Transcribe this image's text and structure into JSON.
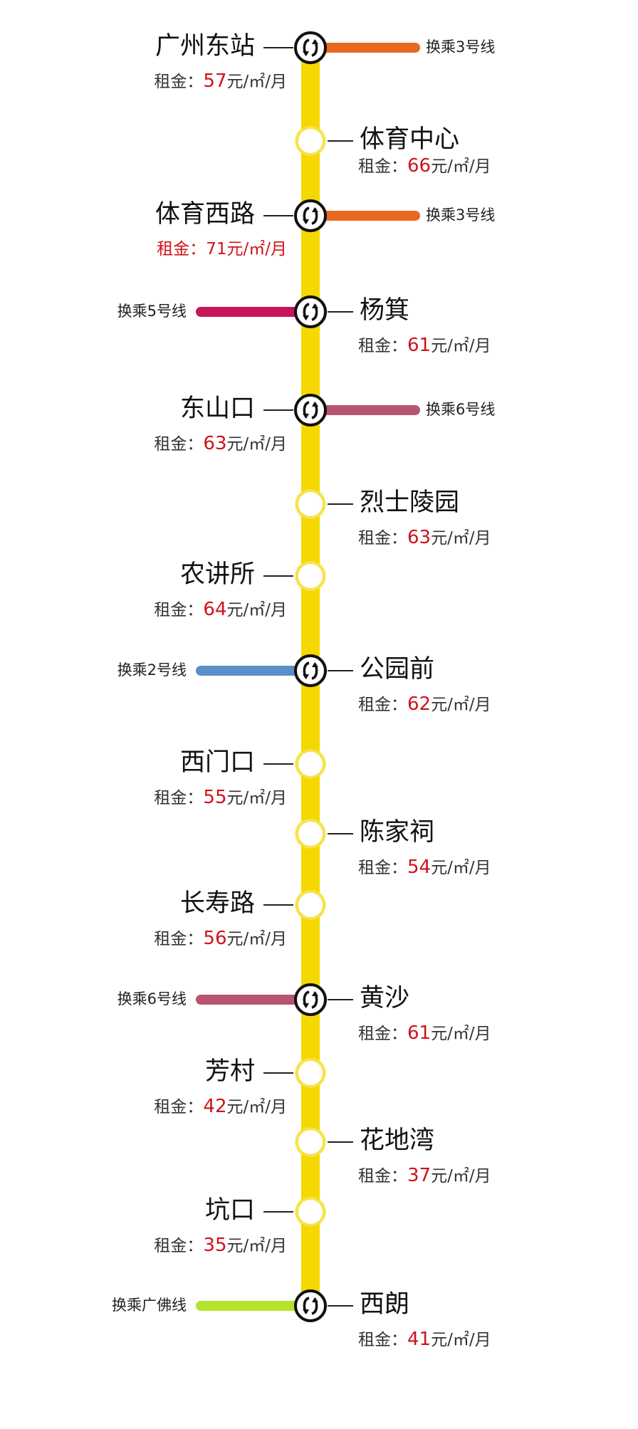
{
  "line_color": "#f5d800",
  "rent_prefix": "租金：",
  "rent_unit": "元/㎡/月",
  "stations": [
    {
      "name": "广州东站",
      "side": "left",
      "rent": "57",
      "transfer": {
        "label": "换乘3号线",
        "color": "#e8691e"
      }
    },
    {
      "name": "体育中心",
      "side": "right",
      "rent": "66"
    },
    {
      "name": "体育西路",
      "side": "left",
      "rent": "71",
      "highlight": true,
      "transfer": {
        "label": "换乘3号线",
        "color": "#e8691e"
      }
    },
    {
      "name": "杨箕",
      "side": "right",
      "rent": "61",
      "transfer": {
        "label": "换乘5号线",
        "color": "#c8145a"
      }
    },
    {
      "name": "东山口",
      "side": "left",
      "rent": "63",
      "transfer": {
        "label": "换乘6号线",
        "color": "#b85470"
      }
    },
    {
      "name": "烈士陵园",
      "side": "right",
      "rent": "63"
    },
    {
      "name": "农讲所",
      "side": "left",
      "rent": "64"
    },
    {
      "name": "公园前",
      "side": "right",
      "rent": "62",
      "transfer": {
        "label": "换乘2号线",
        "color": "#5b8fc8"
      }
    },
    {
      "name": "西门口",
      "side": "left",
      "rent": "55"
    },
    {
      "name": "陈家祠",
      "side": "right",
      "rent": "54"
    },
    {
      "name": "长寿路",
      "side": "left",
      "rent": "56"
    },
    {
      "name": "黄沙",
      "side": "right",
      "rent": "61",
      "transfer": {
        "label": "换乘6号线",
        "color": "#b85470"
      }
    },
    {
      "name": "芳村",
      "side": "left",
      "rent": "42"
    },
    {
      "name": "花地湾",
      "side": "right",
      "rent": "37"
    },
    {
      "name": "坑口",
      "side": "left",
      "rent": "35"
    },
    {
      "name": "西朗",
      "side": "right",
      "rent": "41",
      "transfer": {
        "label": "换乘广佛线",
        "color": "#b5e22a"
      }
    }
  ]
}
